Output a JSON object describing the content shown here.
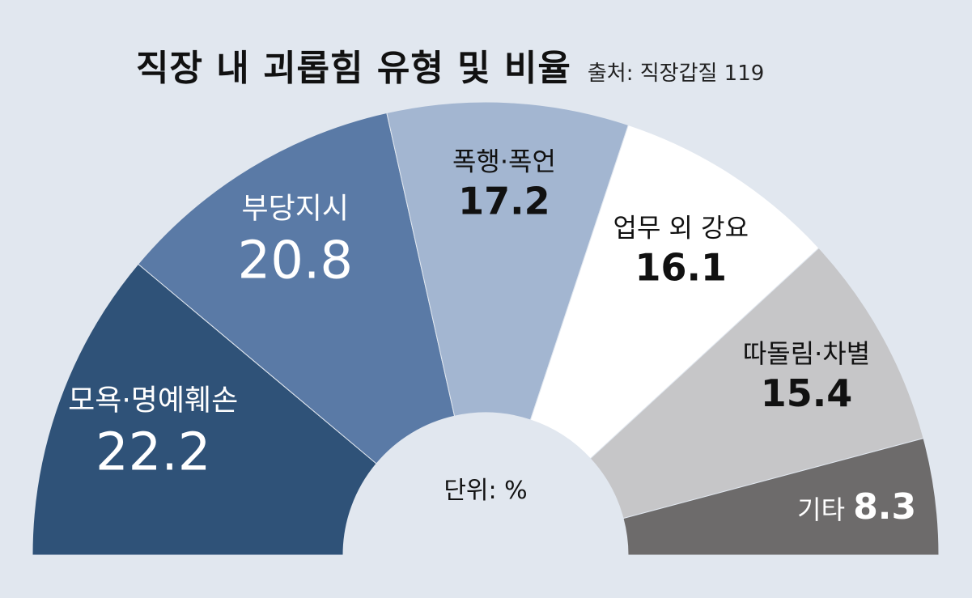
{
  "title": "직장 내 괴롭힘 유형 및 비율",
  "source": "출처: 직장갑질 119",
  "chart_data": {
    "type": "pie",
    "subtype": "half-donut",
    "unit_label": "단위: %",
    "slices": [
      {
        "label": "모욕·명예훼손",
        "value": 22.2,
        "color": "#2f5278",
        "text_color": "#ffffff"
      },
      {
        "label": "부당지시",
        "value": 20.8,
        "color": "#5a7aa6",
        "text_color": "#ffffff"
      },
      {
        "label": "폭행·폭언",
        "value": 17.2,
        "color": "#a3b6d1",
        "text_color": "#111111"
      },
      {
        "label": "업무 외 강요",
        "value": 16.1,
        "color": "#ffffff",
        "text_color": "#111111"
      },
      {
        "label": "따돌림·차별",
        "value": 15.4,
        "color": "#c6c6c8",
        "text_color": "#111111"
      },
      {
        "label": "기타",
        "value": 8.3,
        "color": "#6d6b6b",
        "text_color": "#ffffff"
      }
    ]
  }
}
